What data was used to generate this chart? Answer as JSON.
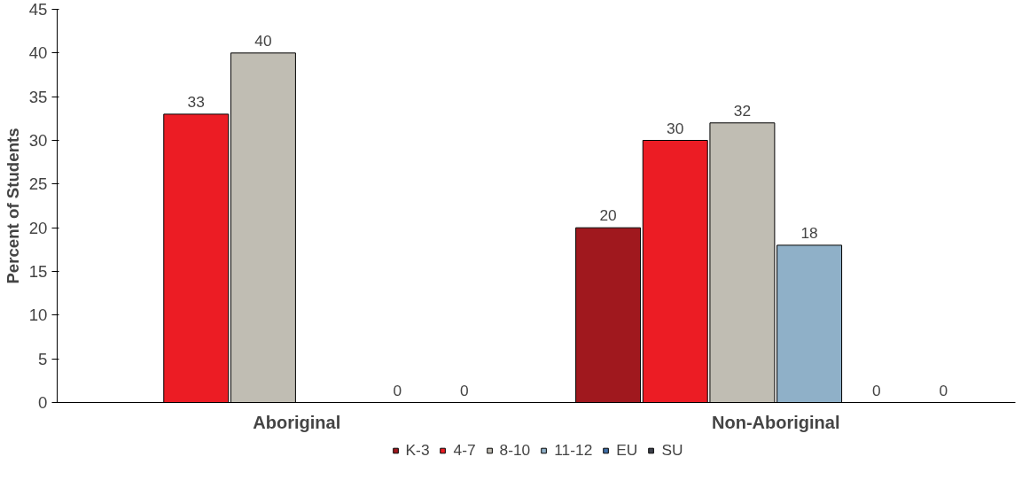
{
  "chart_data": {
    "type": "bar",
    "ylabel": "Percent of Students",
    "categories": [
      "Aboriginal",
      "Non-Aboriginal"
    ],
    "series": [
      {
        "name": "K-3",
        "color": "#a0181e",
        "values": [
          null,
          20
        ]
      },
      {
        "name": "4-7",
        "color": "#ec1c24",
        "values": [
          33,
          30
        ]
      },
      {
        "name": "8-10",
        "color": "#c0bdb3",
        "values": [
          40,
          32
        ]
      },
      {
        "name": "11-12",
        "color": "#8fb0c8",
        "values": [
          null,
          18
        ]
      },
      {
        "name": "EU",
        "color": "#3f6ea6",
        "values": [
          0,
          0
        ]
      },
      {
        "name": "SU",
        "color": "#3c3f4a",
        "values": [
          0,
          0
        ]
      }
    ],
    "ylim": [
      0,
      45
    ],
    "yticks": [
      0,
      5,
      10,
      15,
      20,
      25,
      30,
      35,
      40,
      45
    ],
    "data_labels": true,
    "grid": false,
    "legend": "bottom"
  }
}
